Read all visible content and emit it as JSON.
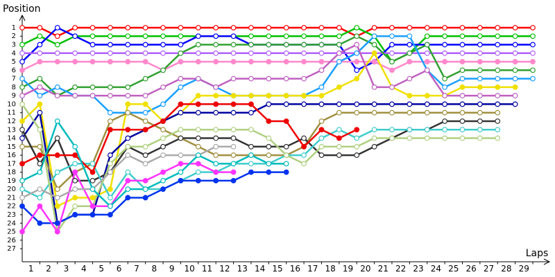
{
  "chart_data": {
    "type": "line",
    "y_label": "Position",
    "x_label": "Laps",
    "x": [
      0,
      1,
      2,
      3,
      4,
      5,
      6,
      7,
      8,
      9,
      10,
      11,
      12,
      13,
      14,
      15,
      16,
      17,
      18,
      19,
      20,
      21,
      22,
      23,
      24,
      25,
      26,
      27,
      28,
      29
    ],
    "xlim": [
      0,
      29
    ],
    "xticks": [
      1,
      2,
      3,
      4,
      5,
      6,
      7,
      8,
      9,
      10,
      11,
      12,
      13,
      14,
      15,
      16,
      17,
      18,
      19,
      20,
      21,
      22,
      23,
      24,
      25,
      26,
      27,
      28,
      29
    ],
    "ylim": [
      28.5,
      0
    ],
    "yticks": [
      1,
      2,
      3,
      4,
      5,
      6,
      7,
      8,
      9,
      10,
      11,
      12,
      13,
      14,
      15,
      16,
      17,
      18,
      19,
      20,
      21,
      22,
      23,
      24,
      25,
      26,
      27
    ],
    "series": [
      {
        "color": "#ff0000",
        "marker": "open",
        "values": [
          1,
          1,
          2,
          1,
          1,
          1,
          1,
          1,
          1,
          1,
          1,
          1,
          1,
          1,
          1,
          1,
          1,
          1,
          1,
          2,
          1,
          1,
          1,
          1,
          1,
          1,
          1,
          1,
          1,
          1
        ]
      },
      {
        "color": "#00c000",
        "marker": "open",
        "values": [
          3,
          2,
          3,
          2,
          2,
          2,
          2,
          2,
          2,
          2,
          2,
          2,
          2,
          2,
          2,
          2,
          2,
          2,
          2,
          1,
          2,
          5,
          4,
          2,
          2,
          2,
          2,
          2,
          2,
          2
        ]
      },
      {
        "color": "#0000ff",
        "marker": "open",
        "values": [
          5,
          3,
          1,
          2,
          3,
          3,
          3,
          3,
          3,
          3,
          2,
          2,
          2,
          3,
          3,
          3,
          3,
          3,
          3,
          6,
          5,
          3,
          3,
          3,
          3,
          3,
          3,
          3,
          3,
          3
        ]
      },
      {
        "color": "#b060ff",
        "marker": "open",
        "values": [
          4,
          4,
          4,
          4,
          4,
          4,
          4,
          4,
          4,
          4,
          4,
          4,
          4,
          4,
          4,
          4,
          4,
          4,
          4,
          4,
          4,
          4,
          4,
          4,
          4,
          4,
          4,
          4,
          4,
          4
        ]
      },
      {
        "color": "#ff88cc",
        "marker": "filled",
        "values": [
          6,
          5,
          5,
          5,
          5,
          5,
          5,
          5,
          6,
          5,
          5,
          5,
          5,
          5,
          5,
          5,
          5,
          5,
          5,
          5,
          5,
          6,
          5,
          5,
          5,
          5,
          5,
          5,
          5,
          5
        ]
      },
      {
        "color": "#30a030",
        "marker": "open",
        "values": [
          8,
          7,
          9,
          8,
          8,
          8,
          8,
          7,
          6,
          4,
          3,
          3,
          3,
          3,
          3,
          3,
          3,
          3,
          3,
          2,
          3,
          5,
          4,
          3,
          7,
          6,
          6,
          6,
          6,
          6
        ]
      },
      {
        "color": "#1a9fff",
        "marker": "open",
        "values": [
          7,
          9,
          8,
          9,
          9,
          11,
          11,
          11,
          10,
          8,
          7,
          8,
          9,
          9,
          9,
          9,
          9,
          8,
          5,
          4,
          2,
          2,
          2,
          6,
          8,
          7,
          7,
          7,
          7,
          7
        ]
      },
      {
        "color": "#f0e000",
        "marker": "filled",
        "values": [
          12,
          10,
          22,
          21,
          21,
          20,
          10,
          10,
          12,
          11,
          9,
          9,
          9,
          9,
          9,
          9,
          9,
          9,
          8,
          7,
          4,
          8,
          9,
          9,
          9,
          8,
          8,
          8,
          8,
          null
        ]
      },
      {
        "color": "#c060c0",
        "marker": "open",
        "values": [
          9,
          8,
          9,
          9,
          9,
          9,
          9,
          9,
          8,
          7,
          7,
          8,
          7,
          7,
          7,
          7,
          7,
          6,
          4,
          3,
          8,
          8,
          7,
          6,
          9,
          9,
          9,
          9,
          9,
          null
        ]
      },
      {
        "color": "#0000a0",
        "marker": "open",
        "values": [
          14,
          11,
          24,
          23,
          23,
          16,
          14,
          13,
          12,
          11,
          11,
          11,
          11,
          11,
          10,
          10,
          10,
          10,
          10,
          10,
          10,
          10,
          10,
          10,
          10,
          10,
          10,
          10,
          10,
          null
        ]
      },
      {
        "color": "#a09040",
        "marker": "open",
        "values": [
          15,
          15,
          20,
          18,
          17,
          12,
          11,
          12,
          13,
          14,
          15,
          16,
          16,
          16,
          16,
          16,
          15,
          12,
          11,
          11,
          11,
          11,
          11,
          11,
          11,
          11,
          11,
          11,
          null,
          null
        ]
      },
      {
        "color": "#333333",
        "marker": "open",
        "values": [
          13,
          17,
          14,
          19,
          19,
          18,
          15,
          16,
          15,
          14,
          14,
          14,
          14,
          15,
          15,
          15,
          14,
          16,
          16,
          16,
          15,
          14,
          13,
          13,
          12,
          12,
          12,
          12,
          null,
          null
        ]
      },
      {
        "color": "#40cccc",
        "marker": "open",
        "values": [
          20,
          21,
          18,
          17,
          17,
          21,
          18,
          20,
          20,
          19,
          18,
          18,
          17,
          17,
          17,
          16,
          16,
          14,
          13,
          14,
          13,
          13,
          13,
          13,
          13,
          13,
          13,
          13,
          null,
          null
        ]
      },
      {
        "color": "#b0d080",
        "marker": "open",
        "values": [
          10,
          13,
          25,
          22,
          22,
          17,
          15,
          15,
          14,
          13,
          13,
          13,
          13,
          13,
          14,
          16,
          17,
          15,
          15,
          15,
          14,
          14,
          14,
          14,
          14,
          14,
          14,
          14,
          null,
          null
        ]
      },
      {
        "color": "#ee0000",
        "marker": "filled",
        "values": [
          17,
          16,
          16,
          16,
          18,
          13,
          13,
          13,
          12,
          10,
          10,
          10,
          10,
          10,
          12,
          12,
          15,
          13,
          14,
          13,
          null,
          null,
          null,
          null,
          null,
          null,
          null,
          null,
          null,
          null
        ]
      },
      {
        "color": "#0033ee",
        "marker": "filled",
        "values": [
          22,
          24,
          24,
          23,
          23,
          23,
          21,
          21,
          20,
          19,
          19,
          19,
          19,
          18,
          18,
          18,
          null,
          null,
          null,
          null,
          null,
          null,
          null,
          null,
          null,
          null,
          null,
          null,
          null,
          null
        ]
      },
      {
        "color": "#ff33ff",
        "marker": "filled",
        "values": [
          25,
          22,
          25,
          18,
          22,
          22,
          19,
          19,
          18,
          17,
          17,
          18,
          18,
          null,
          null,
          null,
          null,
          null,
          null,
          null,
          null,
          null,
          null,
          null,
          null,
          null,
          null,
          null,
          null,
          null
        ]
      },
      {
        "color": "#aaaaaa",
        "marker": "open",
        "values": [
          21,
          20,
          21,
          20,
          20,
          18,
          16,
          17,
          16,
          16,
          16,
          15,
          15,
          null,
          null,
          null,
          null,
          null,
          null,
          null,
          null,
          null,
          null,
          null,
          null,
          null,
          null,
          null,
          null,
          null
        ]
      },
      {
        "color": "#00bbbb",
        "marker": "open",
        "values": [
          19,
          18,
          12,
          15,
          20,
          22,
          20,
          20,
          19,
          18,
          16,
          17,
          17,
          16,
          17,
          17,
          null,
          null,
          null,
          null,
          null,
          null,
          null,
          null,
          null,
          null,
          null,
          null,
          null,
          null
        ]
      }
    ]
  }
}
